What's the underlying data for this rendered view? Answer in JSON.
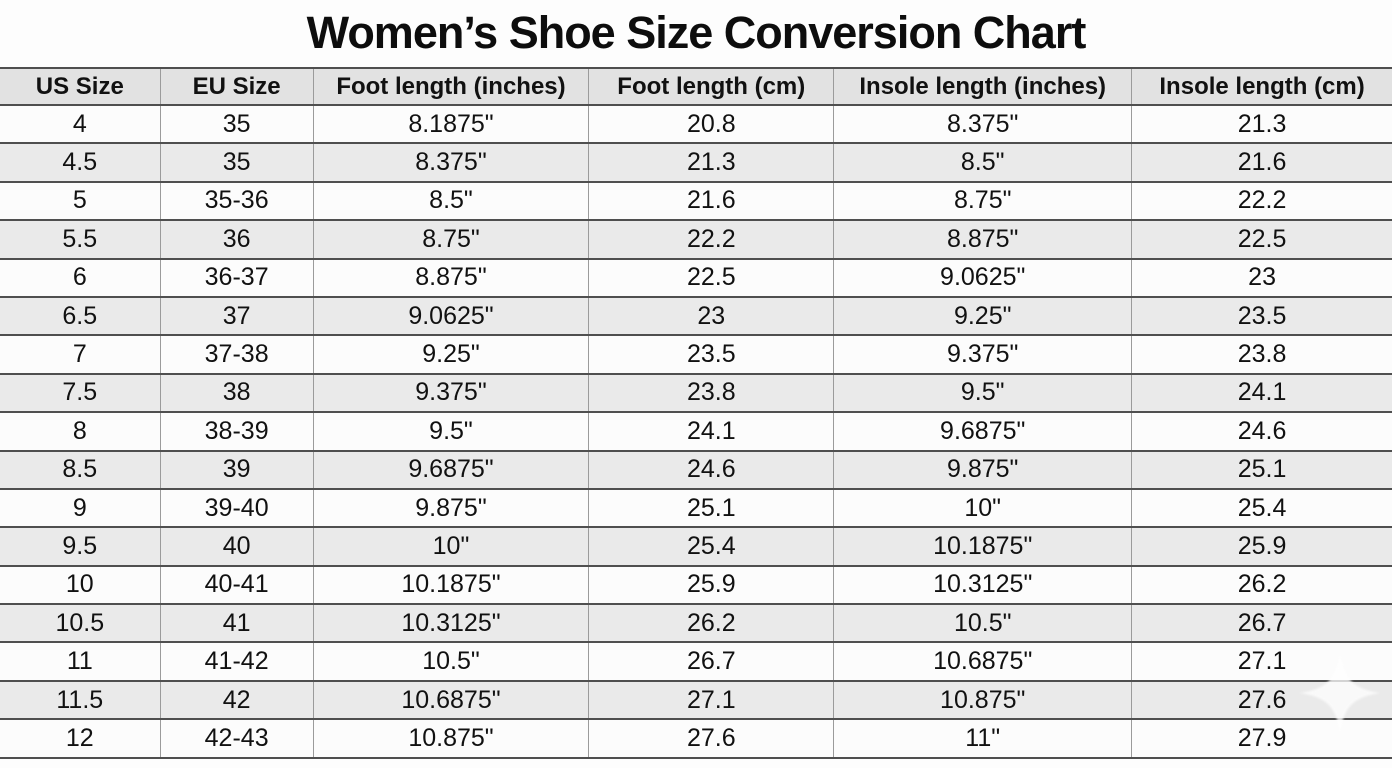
{
  "title": "Women’s Shoe Size Conversion Chart",
  "colors": {
    "bg-page": "#fdfdfd",
    "bg-header": "#e2e2e2",
    "bg-row": "#fcfcfc",
    "bg-row-alt": "#eaeaea",
    "border-dark": "#4f4f4f",
    "border-light": "#9b9b9b",
    "text": "#111111"
  },
  "table": {
    "headers": [
      "US Size",
      "EU Size",
      "Foot length (inches)",
      "Foot length (cm)",
      "Insole length (inches)",
      "Insole length (cm)"
    ],
    "header_keys": [
      "us-size",
      "eu-size",
      "foot-length-inches",
      "foot-length-cm",
      "insole-length-inches",
      "insole-length-cm"
    ],
    "rows": [
      [
        "4",
        "35",
        "8.1875\"",
        "20.8",
        "8.375\"",
        "21.3"
      ],
      [
        "4.5",
        "35",
        "8.375\"",
        "21.3",
        "8.5\"",
        "21.6"
      ],
      [
        "5",
        "35-36",
        "8.5\"",
        "21.6",
        "8.75\"",
        "22.2"
      ],
      [
        "5.5",
        "36",
        "8.75\"",
        "22.2",
        "8.875\"",
        "22.5"
      ],
      [
        "6",
        "36-37",
        "8.875\"",
        "22.5",
        "9.0625\"",
        "23"
      ],
      [
        "6.5",
        "37",
        "9.0625\"",
        "23",
        "9.25\"",
        "23.5"
      ],
      [
        "7",
        "37-38",
        "9.25\"",
        "23.5",
        "9.375\"",
        "23.8"
      ],
      [
        "7.5",
        "38",
        "9.375\"",
        "23.8",
        "9.5\"",
        "24.1"
      ],
      [
        "8",
        "38-39",
        "9.5\"",
        "24.1",
        "9.6875\"",
        "24.6"
      ],
      [
        "8.5",
        "39",
        "9.6875\"",
        "24.6",
        "9.875\"",
        "25.1"
      ],
      [
        "9",
        "39-40",
        "9.875\"",
        "25.1",
        "10\"",
        "25.4"
      ],
      [
        "9.5",
        "40",
        "10\"",
        "25.4",
        "10.1875\"",
        "25.9"
      ],
      [
        "10",
        "40-41",
        "10.1875\"",
        "25.9",
        "10.3125\"",
        "26.2"
      ],
      [
        "10.5",
        "41",
        "10.3125\"",
        "26.2",
        "10.5\"",
        "26.7"
      ],
      [
        "11",
        "41-42",
        "10.5\"",
        "26.7",
        "10.6875\"",
        "27.1"
      ],
      [
        "11.5",
        "42",
        "10.6875\"",
        "27.1",
        "10.875\"",
        "27.6"
      ],
      [
        "12",
        "42-43",
        "10.875\"",
        "27.6",
        "11\"",
        "27.9"
      ]
    ]
  },
  "chart_data": {
    "type": "table",
    "title": "Women’s Shoe Size Conversion Chart",
    "columns": [
      "US Size",
      "EU Size",
      "Foot length (inches)",
      "Foot length (cm)",
      "Insole length (inches)",
      "Insole length (cm)"
    ],
    "rows": [
      [
        "4",
        "35",
        "8.1875\"",
        "20.8",
        "8.375\"",
        "21.3"
      ],
      [
        "4.5",
        "35",
        "8.375\"",
        "21.3",
        "8.5\"",
        "21.6"
      ],
      [
        "5",
        "35-36",
        "8.5\"",
        "21.6",
        "8.75\"",
        "22.2"
      ],
      [
        "5.5",
        "36",
        "8.75\"",
        "22.2",
        "8.875\"",
        "22.5"
      ],
      [
        "6",
        "36-37",
        "8.875\"",
        "22.5",
        "9.0625\"",
        "23"
      ],
      [
        "6.5",
        "37",
        "9.0625\"",
        "23",
        "9.25\"",
        "23.5"
      ],
      [
        "7",
        "37-38",
        "9.25\"",
        "23.5",
        "9.375\"",
        "23.8"
      ],
      [
        "7.5",
        "38",
        "9.375\"",
        "23.8",
        "9.5\"",
        "24.1"
      ],
      [
        "8",
        "38-39",
        "9.5\"",
        "24.1",
        "9.6875\"",
        "24.6"
      ],
      [
        "8.5",
        "39",
        "9.6875\"",
        "24.6",
        "9.875\"",
        "25.1"
      ],
      [
        "9",
        "39-40",
        "9.875\"",
        "25.1",
        "10\"",
        "25.4"
      ],
      [
        "9.5",
        "40",
        "10\"",
        "25.4",
        "10.1875\"",
        "25.9"
      ],
      [
        "10",
        "40-41",
        "10.1875\"",
        "25.9",
        "10.3125\"",
        "26.2"
      ],
      [
        "10.5",
        "41",
        "10.3125\"",
        "26.2",
        "10.5\"",
        "26.7"
      ],
      [
        "11",
        "41-42",
        "10.5\"",
        "26.7",
        "10.6875\"",
        "27.1"
      ],
      [
        "11.5",
        "42",
        "10.6875\"",
        "27.1",
        "10.875\"",
        "27.6"
      ],
      [
        "12",
        "42-43",
        "10.875\"",
        "27.6",
        "11\"",
        "27.9"
      ]
    ]
  },
  "watermark": {
    "icon": "sparkle-icon"
  }
}
